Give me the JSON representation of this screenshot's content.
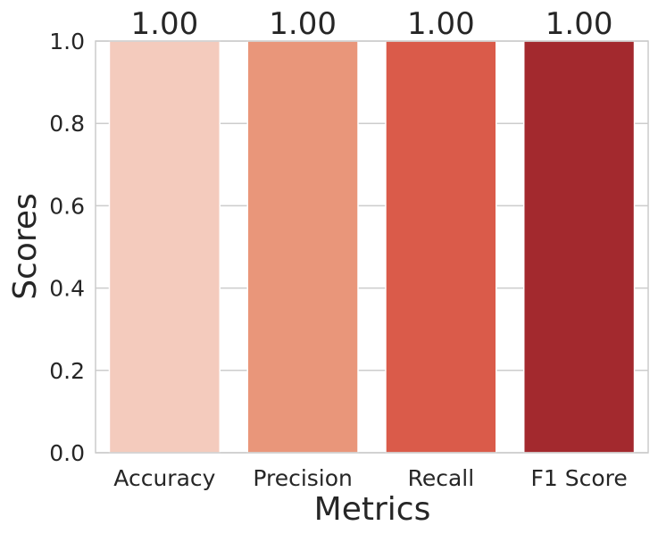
{
  "chart_data": {
    "type": "bar",
    "categories": [
      "Accuracy",
      "Precision",
      "Recall",
      "F1 Score"
    ],
    "values": [
      1.0,
      1.0,
      1.0,
      1.0
    ],
    "data_labels": [
      "1.00",
      "1.00",
      "1.00",
      "1.00"
    ],
    "colors": [
      "#f4cbbd",
      "#e9967a",
      "#da5b4a",
      "#a3292e"
    ],
    "xlabel": "Metrics",
    "ylabel": "Scores",
    "ylim": [
      0,
      1.0
    ],
    "yticks": [
      0.0,
      0.2,
      0.4,
      0.6,
      0.8,
      1.0
    ],
    "ytick_labels": [
      "0.0",
      "0.2",
      "0.4",
      "0.6",
      "0.8",
      "1.0"
    ],
    "grid": "y",
    "grid_color": "#cccccc",
    "frame_color": "#cccccc",
    "legend": "none"
  }
}
